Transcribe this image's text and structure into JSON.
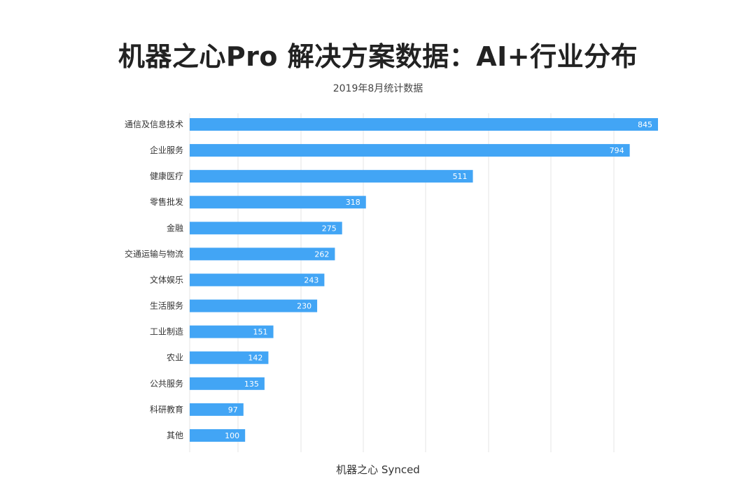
{
  "title": "机器之心Pro 解决方案数据：AI+行业分布",
  "subtitle": "2019年8月统计数据",
  "footer": "机器之心 Synced",
  "colors": {
    "bar": "#42A5F5",
    "grid": "#e6e6e6"
  },
  "chart_data": {
    "type": "bar",
    "orientation": "horizontal",
    "title": "机器之心Pro 解决方案数据：AI+行业分布",
    "subtitle": "2019年8月统计数据",
    "categories": [
      "通信及信息技术",
      "企业服务",
      "健康医疗",
      "零售批发",
      "金融",
      "交通运输与物流",
      "文体娱乐",
      "生活服务",
      "工业制造",
      "农业",
      "公共服务",
      "科研教育",
      "其他"
    ],
    "values": [
      845,
      794,
      511,
      318,
      275,
      262,
      243,
      230,
      151,
      142,
      135,
      97,
      100
    ],
    "xlim": [
      0,
      850
    ],
    "grid": true,
    "data_labels": true
  }
}
